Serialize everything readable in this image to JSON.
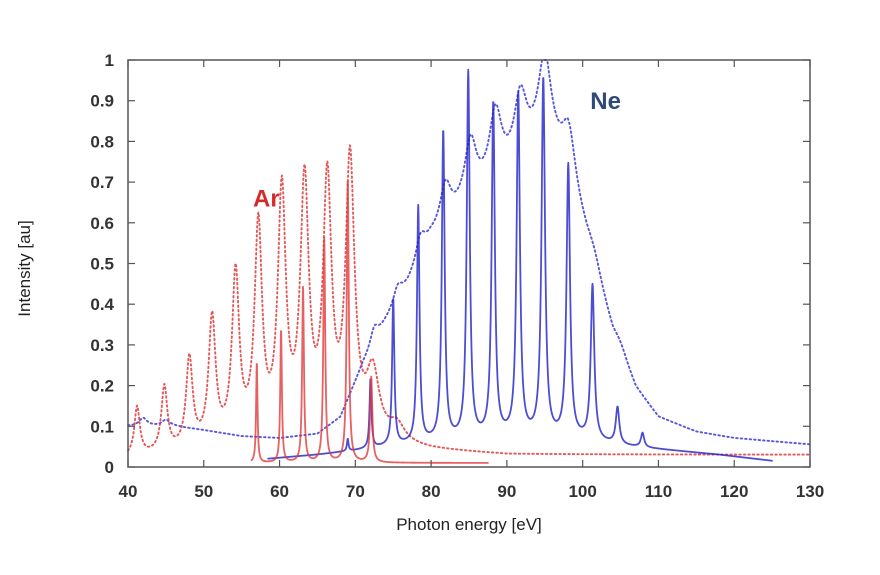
{
  "chart_data": {
    "type": "line",
    "title": "",
    "xlabel": "Photon energy [eV]",
    "ylabel": "Intensity [au]",
    "xlim": [
      40,
      130
    ],
    "ylim": [
      0,
      1
    ],
    "xticks": [
      40,
      50,
      60,
      70,
      80,
      90,
      100,
      110,
      120,
      130
    ],
    "yticks": [
      0,
      0.1,
      0.2,
      0.3,
      0.4,
      0.5,
      0.6,
      0.7,
      0.8,
      0.9,
      1
    ],
    "ytick_labels": [
      "0",
      "0.1",
      "0.2",
      "0.3",
      "0.4",
      "0.5",
      "0.6",
      "0.7",
      "0.8",
      "0.9",
      "1"
    ],
    "grid": false,
    "annotations": [
      {
        "text": "Ar",
        "x": 56.5,
        "y": 0.64,
        "color": "#d42a2a"
      },
      {
        "text": "Ne",
        "x": 101,
        "y": 0.88,
        "color": "#2f4a7a"
      }
    ],
    "series": [
      {
        "name": "Ar (dotted)",
        "color": "#e03a3a",
        "style": "dotted",
        "range": [
          40,
          130
        ],
        "baseline": [
          [
            40,
            0.02
          ],
          [
            56,
            0.05
          ],
          [
            70,
            0.05
          ],
          [
            75,
            0.05
          ],
          [
            80,
            0.04
          ],
          [
            90,
            0.03
          ],
          [
            130,
            0.03
          ]
        ],
        "peaks": [
          {
            "x": 41.2,
            "y": 0.12,
            "w": 0.55
          },
          {
            "x": 44.8,
            "y": 0.16,
            "w": 0.6
          },
          {
            "x": 48.1,
            "y": 0.22,
            "w": 0.65
          },
          {
            "x": 51.1,
            "y": 0.31,
            "w": 0.7
          },
          {
            "x": 54.2,
            "y": 0.41,
            "w": 0.72
          },
          {
            "x": 57.2,
            "y": 0.52,
            "w": 0.75
          },
          {
            "x": 60.3,
            "y": 0.6,
            "w": 0.8
          },
          {
            "x": 63.3,
            "y": 0.62,
            "w": 0.85
          },
          {
            "x": 66.3,
            "y": 0.62,
            "w": 0.85
          },
          {
            "x": 69.3,
            "y": 0.68,
            "w": 0.9
          },
          {
            "x": 72.3,
            "y": 0.16,
            "w": 1.3
          },
          {
            "x": 75.5,
            "y": 0.04,
            "w": 1.5
          }
        ]
      },
      {
        "name": "Ar (solid)",
        "color": "#e03a3a",
        "style": "solid",
        "range": [
          56.3,
          87.5
        ],
        "baseline": [
          [
            56.3,
            0.01
          ],
          [
            75,
            0.01
          ],
          [
            87.5,
            0.01
          ]
        ],
        "peaks": [
          {
            "x": 57.0,
            "y": 0.25,
            "w": 0.22
          },
          {
            "x": 60.2,
            "y": 0.33,
            "w": 0.25
          },
          {
            "x": 63.1,
            "y": 0.43,
            "w": 0.28
          },
          {
            "x": 65.9,
            "y": 0.55,
            "w": 0.3
          },
          {
            "x": 69.0,
            "y": 0.7,
            "w": 0.32
          },
          {
            "x": 72.1,
            "y": 0.21,
            "w": 0.35
          }
        ]
      },
      {
        "name": "Ne (dotted)",
        "color": "#3a3ad8",
        "style": "dotted",
        "range": [
          40,
          130
        ],
        "baseline": [
          [
            40,
            0.1
          ],
          [
            46,
            0.1
          ],
          [
            50,
            0.09
          ],
          [
            55,
            0.075
          ],
          [
            60,
            0.07
          ],
          [
            65,
            0.08
          ],
          [
            68,
            0.12
          ],
          [
            71,
            0.25
          ],
          [
            74,
            0.35
          ],
          [
            77,
            0.44
          ],
          [
            80,
            0.55
          ],
          [
            84,
            0.62
          ],
          [
            88,
            0.68
          ],
          [
            92,
            0.73
          ],
          [
            95,
            0.8
          ],
          [
            98,
            0.7
          ],
          [
            101,
            0.52
          ],
          [
            104,
            0.32
          ],
          [
            107,
            0.19
          ],
          [
            110,
            0.12
          ],
          [
            115,
            0.085
          ],
          [
            120,
            0.07
          ],
          [
            130,
            0.055
          ]
        ],
        "peaks": [
          {
            "x": 42,
            "y": 0.02,
            "w": 0.8
          },
          {
            "x": 45,
            "y": 0.015,
            "w": 0.8
          },
          {
            "x": 72.5,
            "y": 0.04,
            "w": 0.8
          },
          {
            "x": 75.6,
            "y": 0.04,
            "w": 0.9
          },
          {
            "x": 78.6,
            "y": 0.06,
            "w": 1.0
          },
          {
            "x": 81.9,
            "y": 0.1,
            "w": 1.1
          },
          {
            "x": 85.2,
            "y": 0.15,
            "w": 1.2
          },
          {
            "x": 88.5,
            "y": 0.17,
            "w": 1.25
          },
          {
            "x": 91.8,
            "y": 0.17,
            "w": 1.3
          },
          {
            "x": 95.0,
            "y": 0.19,
            "w": 1.35
          },
          {
            "x": 98.2,
            "y": 0.13,
            "w": 1.4
          },
          {
            "x": 101.6,
            "y": 0.03,
            "w": 1.4
          },
          {
            "x": 105,
            "y": 0.02,
            "w": 1.4
          }
        ]
      },
      {
        "name": "Ne (solid)",
        "color": "#2020c8",
        "style": "solid",
        "range": [
          58.5,
          125
        ],
        "baseline": [
          [
            58.5,
            0.02
          ],
          [
            65,
            0.03
          ],
          [
            70,
            0.04
          ],
          [
            74,
            0.05
          ],
          [
            80,
            0.06
          ],
          [
            90,
            0.07
          ],
          [
            100,
            0.065
          ],
          [
            106,
            0.05
          ],
          [
            112,
            0.04
          ],
          [
            118,
            0.03
          ],
          [
            125,
            0.015
          ]
        ],
        "peaks": [
          {
            "x": 69.0,
            "y": 0.03,
            "w": 0.25
          },
          {
            "x": 72.0,
            "y": 0.17,
            "w": 0.3
          },
          {
            "x": 75.0,
            "y": 0.36,
            "w": 0.35
          },
          {
            "x": 78.3,
            "y": 0.58,
            "w": 0.4
          },
          {
            "x": 81.6,
            "y": 0.76,
            "w": 0.45
          },
          {
            "x": 84.9,
            "y": 0.9,
            "w": 0.48
          },
          {
            "x": 88.2,
            "y": 0.82,
            "w": 0.5
          },
          {
            "x": 91.5,
            "y": 0.84,
            "w": 0.52
          },
          {
            "x": 94.8,
            "y": 0.88,
            "w": 0.55
          },
          {
            "x": 98.1,
            "y": 0.67,
            "w": 0.55
          },
          {
            "x": 101.3,
            "y": 0.38,
            "w": 0.55
          },
          {
            "x": 104.6,
            "y": 0.09,
            "w": 0.55
          },
          {
            "x": 107.9,
            "y": 0.035,
            "w": 0.5
          }
        ]
      }
    ],
    "peak_summary": {
      "Ar_solid_peaks": [
        [
          57,
          0.25
        ],
        [
          60.2,
          0.33
        ],
        [
          63.1,
          0.43
        ],
        [
          65.9,
          0.55
        ],
        [
          69,
          0.7
        ],
        [
          72.1,
          0.21
        ]
      ],
      "Ar_dotted_peaks": [
        [
          41.2,
          0.12
        ],
        [
          44.8,
          0.16
        ],
        [
          48.1,
          0.22
        ],
        [
          51.1,
          0.31
        ],
        [
          54.2,
          0.41
        ],
        [
          57.2,
          0.52
        ],
        [
          60.3,
          0.6
        ],
        [
          63.3,
          0.62
        ],
        [
          66.3,
          0.62
        ],
        [
          69.3,
          0.68
        ]
      ],
      "Ne_solid_peaks": [
        [
          75,
          0.41
        ],
        [
          78.3,
          0.64
        ],
        [
          81.6,
          0.82
        ],
        [
          84.9,
          0.97
        ],
        [
          88.2,
          0.89
        ],
        [
          91.5,
          0.91
        ],
        [
          94.8,
          0.95
        ],
        [
          98.1,
          0.73
        ],
        [
          101.3,
          0.44
        ],
        [
          104.6,
          0.14
        ],
        [
          107.9,
          0.08
        ]
      ],
      "Ne_dotted_peaks": [
        [
          79,
          0.63
        ],
        [
          82.3,
          0.72
        ],
        [
          85.5,
          0.8
        ],
        [
          88.7,
          0.85
        ],
        [
          92,
          0.9
        ],
        [
          95,
          0.99
        ],
        [
          98.4,
          0.84
        ],
        [
          101.8,
          0.53
        ],
        [
          105,
          0.31
        ]
      ]
    }
  }
}
